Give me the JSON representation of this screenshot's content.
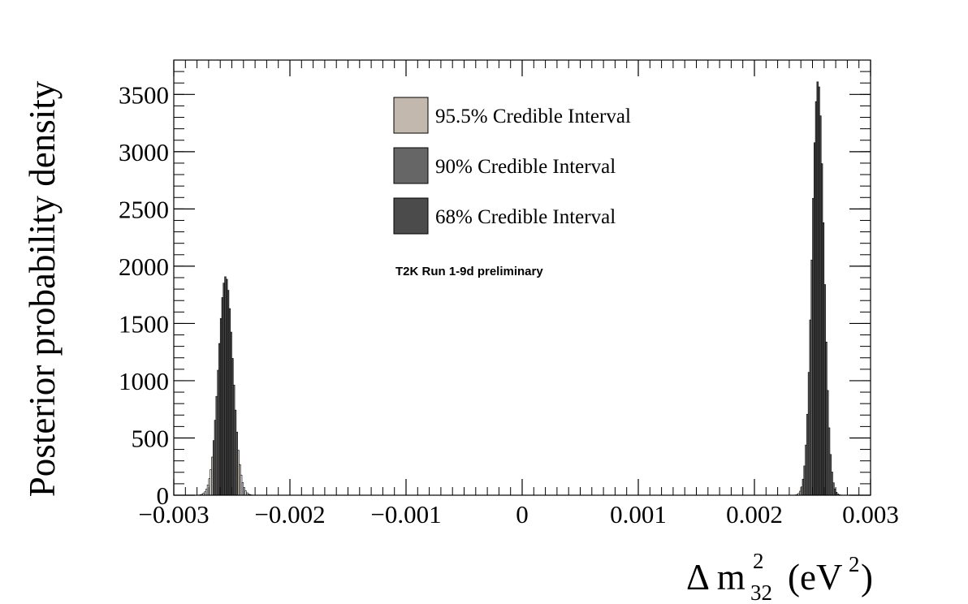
{
  "chart_data": {
    "type": "bar",
    "ylabel": "Posterior probability density",
    "xlabel": {
      "prefix": "Δ m",
      "superscript": "2",
      "subscript": "32",
      "unit": "(eV",
      "unit_superscript": "2",
      "unit_close": ")"
    },
    "xlim": [
      -0.003,
      0.003
    ],
    "ylim": [
      0,
      3800
    ],
    "x_ticks": [
      -0.003,
      -0.002,
      -0.001,
      0,
      0.001,
      0.002,
      0.003
    ],
    "x_tick_labels": [
      "−0.003",
      "−0.002",
      "−0.001",
      "0",
      "0.001",
      "0.002",
      "0.003"
    ],
    "y_ticks": [
      0,
      500,
      1000,
      1500,
      2000,
      2500,
      3000,
      3500
    ],
    "y_tick_labels": [
      "0",
      "500",
      "1000",
      "1500",
      "2000",
      "2500",
      "3000",
      "3500"
    ],
    "grid": false,
    "legend_position": "top-center",
    "annotation": "T2K Run 1-9d preliminary",
    "bin_width": 1.25e-05,
    "series": [
      {
        "name": "95.5% Credible Interval",
        "color": "#c2b8ad",
        "peaks": [
          {
            "x_range": [
              -0.002674,
              -0.002429
            ],
            "mean": -0.0025535,
            "sigma": 6.17e-05,
            "peak": 1910
          },
          {
            "x_range": [
              0.002395,
              0.002729
            ],
            "mean": 0.0025475,
            "sigma": 5.05e-05,
            "peak": 3620
          }
        ]
      },
      {
        "name": "90% Credible Interval",
        "color": "#666666",
        "peaks": [
          {
            "x_range": [
              -0.002657,
              -0.002446
            ],
            "mean": -0.0025535,
            "sigma": 6.17e-05,
            "peak": 1910
          },
          {
            "x_range": [
              0.002411,
              0.002714
            ],
            "mean": 0.0025475,
            "sigma": 5.05e-05,
            "peak": 3620
          }
        ]
      },
      {
        "name": "68% Credible Interval",
        "color": "#4b4b4b",
        "peaks": [
          {
            "x_range": [
              -0.002616,
              -0.002491
            ],
            "mean": -0.0025535,
            "sigma": 6.17e-05,
            "peak": 1910
          },
          {
            "x_range": [
              0.002495,
              0.002626
            ],
            "mean": 0.0025475,
            "sigma": 5.05e-05,
            "peak": 3620
          }
        ]
      }
    ]
  }
}
